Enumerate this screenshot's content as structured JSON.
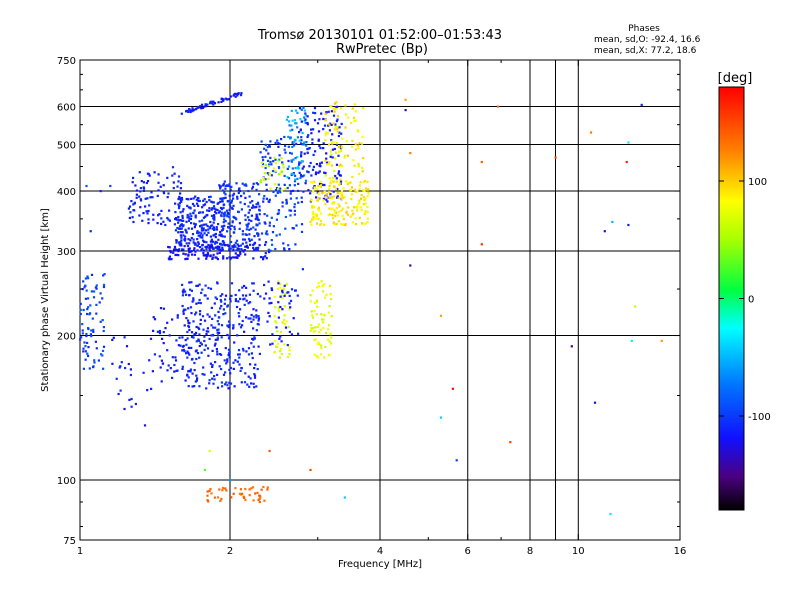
{
  "chart_data": {
    "type": "scatter",
    "title": "Tromsø 20130101 01:52:00–01:53:43",
    "subtitle": "RwPretec (Bp)",
    "phase_box": {
      "heading": "Phases",
      "line_o": "mean, sd,O: -92.4, 16.6",
      "line_x": "mean, sd,X: 77.2, 18.6"
    },
    "xlabel": "Frequency [MHz]",
    "ylabel": "Stationary phase Virtual Height [km]",
    "x_scale": "log",
    "y_scale": "log",
    "xlim": [
      1,
      16
    ],
    "ylim": [
      75,
      750
    ],
    "x_ticks": [
      1,
      2,
      4,
      6,
      8,
      10,
      16
    ],
    "x_tick_labels": [
      "1",
      "2",
      "4",
      "6",
      "8",
      "10",
      "16"
    ],
    "x_minor_ticks": [
      3,
      5,
      7,
      9
    ],
    "y_ticks": [
      75,
      100,
      200,
      300,
      400,
      500,
      600,
      750
    ],
    "y_tick_labels": [
      "75",
      "100",
      "200",
      "300",
      "400",
      "500",
      "600",
      "750"
    ],
    "x_grid": [
      2,
      4,
      6,
      8,
      9,
      10
    ],
    "y_grid": [
      100,
      200,
      300,
      400,
      500,
      600
    ],
    "grid": true,
    "colorbar": {
      "label": "[deg]",
      "range": [
        -180,
        180
      ],
      "ticks": [
        100,
        0,
        -100
      ],
      "tick_labels": [
        "100",
        "0",
        "-100"
      ],
      "colormap": "rainbow"
    },
    "clusters": [
      {
        "x": [
          1.59,
          2.12
        ],
        "y": [
          580,
          640
        ],
        "shape": "band",
        "phase": -115,
        "spread": 10,
        "n": 60
      },
      {
        "x": [
          1.55,
          1.95
        ],
        "y": [
          300,
          390
        ],
        "phase": -110,
        "spread": 8,
        "n": 260
      },
      {
        "x": [
          1.9,
          2.3
        ],
        "y": [
          300,
          420
        ],
        "phase": -105,
        "spread": 10,
        "n": 200
      },
      {
        "x": [
          1.25,
          1.6
        ],
        "y": [
          340,
          450
        ],
        "phase": -112,
        "spread": 8,
        "n": 90
      },
      {
        "x": [
          1.5,
          2.4
        ],
        "y": [
          288,
          310
        ],
        "phase": -120,
        "spread": 8,
        "n": 120
      },
      {
        "x": [
          2.3,
          2.8
        ],
        "y": [
          300,
          520
        ],
        "phase": -100,
        "spread": 15,
        "n": 150
      },
      {
        "x": [
          2.6,
          2.85
        ],
        "y": [
          420,
          600
        ],
        "phase": -60,
        "spread": 25,
        "n": 60
      },
      {
        "x": [
          2.75,
          3.35
        ],
        "y": [
          380,
          600
        ],
        "phase": -115,
        "spread": 10,
        "n": 140
      },
      {
        "x": [
          2.9,
          3.8
        ],
        "y": [
          340,
          420
        ],
        "phase": 90,
        "spread": 12,
        "n": 180
      },
      {
        "x": [
          3.1,
          3.7
        ],
        "y": [
          420,
          620
        ],
        "phase": 85,
        "spread": 18,
        "n": 90
      },
      {
        "x": [
          2.3,
          2.6
        ],
        "y": [
          400,
          470
        ],
        "phase": 60,
        "spread": 20,
        "n": 30
      },
      {
        "x": [
          1.6,
          2.3
        ],
        "y": [
          155,
          260
        ],
        "phase": -110,
        "spread": 10,
        "n": 320
      },
      {
        "x": [
          1.4,
          1.75
        ],
        "y": [
          160,
          230
        ],
        "phase": -115,
        "spread": 10,
        "n": 60
      },
      {
        "x": [
          2.45,
          2.65
        ],
        "y": [
          180,
          260
        ],
        "phase": 72,
        "spread": 15,
        "n": 45
      },
      {
        "x": [
          2.9,
          3.2
        ],
        "y": [
          180,
          260
        ],
        "phase": 72,
        "spread": 15,
        "n": 70
      },
      {
        "x": [
          2.3,
          2.75
        ],
        "y": [
          190,
          260
        ],
        "phase": -115,
        "spread": 10,
        "n": 45
      },
      {
        "x": [
          1.0,
          1.12
        ],
        "y": [
          170,
          270
        ],
        "phase": -95,
        "spread": 15,
        "n": 80
      },
      {
        "x": [
          1.15,
          1.4
        ],
        "y": [
          140,
          200
        ],
        "phase": -115,
        "spread": 10,
        "n": 25
      },
      {
        "x": [
          1.8,
          2.4
        ],
        "y": [
          90,
          97
        ],
        "phase": 135,
        "spread": 10,
        "n": 45
      }
    ],
    "scatter_points": [
      {
        "x": 4.5,
        "y": 620,
        "phase": 115
      },
      {
        "x": 4.5,
        "y": 590,
        "phase": -140
      },
      {
        "x": 4.6,
        "y": 480,
        "phase": 125
      },
      {
        "x": 4.6,
        "y": 280,
        "phase": -140
      },
      {
        "x": 5.3,
        "y": 220,
        "phase": 115
      },
      {
        "x": 5.6,
        "y": 155,
        "phase": 175
      },
      {
        "x": 5.3,
        "y": 135,
        "phase": -40
      },
      {
        "x": 5.7,
        "y": 110,
        "phase": -100
      },
      {
        "x": 6.4,
        "y": 310,
        "phase": 160
      },
      {
        "x": 6.4,
        "y": 460,
        "phase": 140
      },
      {
        "x": 6.9,
        "y": 600,
        "phase": 135
      },
      {
        "x": 7.3,
        "y": 120,
        "phase": 150
      },
      {
        "x": 9.0,
        "y": 470,
        "phase": 145
      },
      {
        "x": 9.7,
        "y": 190,
        "phase": -150
      },
      {
        "x": 10.6,
        "y": 530,
        "phase": 130
      },
      {
        "x": 10.8,
        "y": 145,
        "phase": -120
      },
      {
        "x": 11.3,
        "y": 330,
        "phase": -120
      },
      {
        "x": 11.7,
        "y": 345,
        "phase": -50
      },
      {
        "x": 11.6,
        "y": 85,
        "phase": -30
      },
      {
        "x": 12.5,
        "y": 460,
        "phase": 165
      },
      {
        "x": 12.6,
        "y": 505,
        "phase": -30
      },
      {
        "x": 12.6,
        "y": 340,
        "phase": -115
      },
      {
        "x": 13.0,
        "y": 230,
        "phase": 60
      },
      {
        "x": 12.8,
        "y": 195,
        "phase": -30
      },
      {
        "x": 13.4,
        "y": 605,
        "phase": -110
      },
      {
        "x": 14.7,
        "y": 195,
        "phase": 115
      },
      {
        "x": 2.0,
        "y": 100,
        "phase": -60
      },
      {
        "x": 1.82,
        "y": 115,
        "phase": 70
      },
      {
        "x": 1.78,
        "y": 105,
        "phase": 30
      },
      {
        "x": 2.4,
        "y": 115,
        "phase": 140
      },
      {
        "x": 2.9,
        "y": 105,
        "phase": 150
      },
      {
        "x": 3.4,
        "y": 92,
        "phase": -40
      },
      {
        "x": 2.8,
        "y": 275,
        "phase": -110
      },
      {
        "x": 1.03,
        "y": 410,
        "phase": -90
      },
      {
        "x": 1.05,
        "y": 330,
        "phase": -110
      },
      {
        "x": 1.15,
        "y": 410,
        "phase": -95
      },
      {
        "x": 1.1,
        "y": 400,
        "phase": -110
      },
      {
        "x": 1.35,
        "y": 130,
        "phase": -120
      }
    ]
  }
}
